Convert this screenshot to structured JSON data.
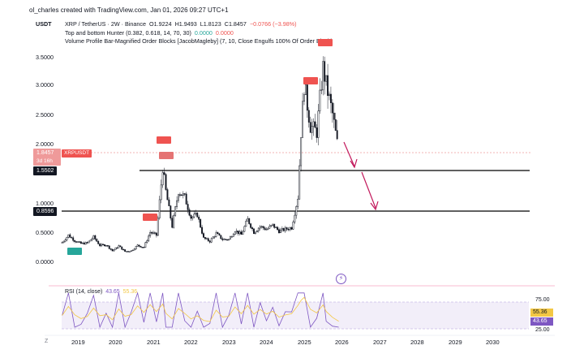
{
  "credit": "ol_charles created with TradingView.com, Jan 01, 2026 09:27 UTC+1",
  "header": {
    "currency": "USDT",
    "symbol_line": "XRP / TetherUS · 2W · Binance",
    "open": "O1.9224",
    "high": "H1.9493",
    "low": "L1.8123",
    "close": "C1.8457",
    "change": "−0.0766 (−3.98%)"
  },
  "indicators": {
    "top_bottom_hunter": {
      "label": "Top and bottom Hunter (0.382, 0.618, 14, 70, 30)",
      "value_green": "0.0000",
      "value_red": "0.0000"
    },
    "volume_profile": {
      "label": "Volume Profile Bar-Magnified Order Blocks [JacobMagleby] (7, 10, Close Engulfs 100% Of Order Block)"
    }
  },
  "price_axis": {
    "labels": [
      "3.5000",
      "3.0000",
      "2.5000",
      "2.0000",
      "1.0000",
      "0.5000",
      "0.0000"
    ]
  },
  "tags": {
    "last_price": "1.8457",
    "countdown": "3d 16h",
    "symbol": "XRPUSDT",
    "level_upper": "1.5502",
    "level_lower": "0.8596"
  },
  "time_axis": {
    "labels": [
      "2019",
      "2020",
      "2021",
      "2022",
      "2023",
      "2024",
      "2025",
      "2026",
      "2027",
      "2028",
      "2029",
      "2030"
    ]
  },
  "rsi": {
    "label": "RSI (14, close)",
    "value": "43.65",
    "ma_value": "55.36",
    "axis_labels": [
      "75.00",
      "25.00"
    ]
  },
  "colors": {
    "bull": "#131722",
    "bear": "#131722",
    "sell_signal": "#ef5350",
    "buy_signal": "#26a69a",
    "rsi_line": "#7e57c2",
    "rsi_ma": "#f3c744",
    "arrow": "#c2185b",
    "level_line": "#000000"
  },
  "icons": {
    "timezone": "Z",
    "event": "lightning-icon"
  },
  "chart_data": {
    "type": "candlestick",
    "x_axis": "date",
    "y_scale": "log",
    "approximate_close_path": [
      {
        "x": "2018-08",
        "y": 0.33
      },
      {
        "x": "2018-10",
        "y": 0.45
      },
      {
        "x": "2018-12",
        "y": 0.36
      },
      {
        "x": "2019-02",
        "y": 0.31
      },
      {
        "x": "2019-04",
        "y": 0.32
      },
      {
        "x": "2019-06",
        "y": 0.42
      },
      {
        "x": "2019-08",
        "y": 0.28
      },
      {
        "x": "2019-10",
        "y": 0.29
      },
      {
        "x": "2019-12",
        "y": 0.19
      },
      {
        "x": "2020-02",
        "y": 0.27
      },
      {
        "x": "2020-04",
        "y": 0.18
      },
      {
        "x": "2020-06",
        "y": 0.19
      },
      {
        "x": "2020-08",
        "y": 0.28
      },
      {
        "x": "2020-10",
        "y": 0.25
      },
      {
        "x": "2020-12",
        "y": 0.5
      },
      {
        "x": "2021-02",
        "y": 0.45
      },
      {
        "x": "2021-04",
        "y": 1.6
      },
      {
        "x": "2021-05",
        "y": 1.2
      },
      {
        "x": "2021-07",
        "y": 0.6
      },
      {
        "x": "2021-09",
        "y": 1.2
      },
      {
        "x": "2021-11",
        "y": 1.1
      },
      {
        "x": "2022-01",
        "y": 0.75
      },
      {
        "x": "2022-03",
        "y": 0.8
      },
      {
        "x": "2022-05",
        "y": 0.4
      },
      {
        "x": "2022-07",
        "y": 0.35
      },
      {
        "x": "2022-09",
        "y": 0.48
      },
      {
        "x": "2022-11",
        "y": 0.38
      },
      {
        "x": "2023-01",
        "y": 0.38
      },
      {
        "x": "2023-03",
        "y": 0.53
      },
      {
        "x": "2023-05",
        "y": 0.46
      },
      {
        "x": "2023-07",
        "y": 0.72
      },
      {
        "x": "2023-09",
        "y": 0.5
      },
      {
        "x": "2023-11",
        "y": 0.6
      },
      {
        "x": "2024-01",
        "y": 0.55
      },
      {
        "x": "2024-03",
        "y": 0.62
      },
      {
        "x": "2024-05",
        "y": 0.52
      },
      {
        "x": "2024-07",
        "y": 0.55
      },
      {
        "x": "2024-09",
        "y": 0.58
      },
      {
        "x": "2024-11",
        "y": 1.1
      },
      {
        "x": "2024-12",
        "y": 2.2
      },
      {
        "x": "2025-01",
        "y": 3.0
      },
      {
        "x": "2025-03",
        "y": 2.3
      },
      {
        "x": "2025-05",
        "y": 2.2
      },
      {
        "x": "2025-07",
        "y": 3.3
      },
      {
        "x": "2025-08",
        "y": 3.0
      },
      {
        "x": "2025-10",
        "y": 2.5
      },
      {
        "x": "2025-12",
        "y": 1.85
      }
    ],
    "horizontal_levels": [
      1.5502,
      0.8596
    ],
    "last_close": 1.8457,
    "ylim": [
      0,
      3.8
    ],
    "grid": false
  }
}
